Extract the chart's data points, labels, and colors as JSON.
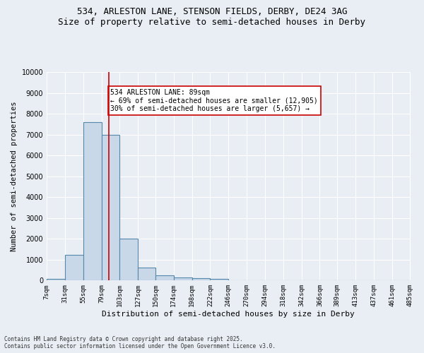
{
  "title_line1": "534, ARLESTON LANE, STENSON FIELDS, DERBY, DE24 3AG",
  "title_line2": "Size of property relative to semi-detached houses in Derby",
  "xlabel": "Distribution of semi-detached houses by size in Derby",
  "ylabel": "Number of semi-detached properties",
  "footnote1": "Contains HM Land Registry data © Crown copyright and database right 2025.",
  "footnote2": "Contains public sector information licensed under the Open Government Licence v3.0.",
  "bar_edges": [
    7,
    31,
    55,
    79,
    103,
    127,
    150,
    174,
    198,
    222,
    246,
    270,
    294,
    318,
    342,
    366,
    389,
    413,
    437,
    461,
    485
  ],
  "bar_values": [
    80,
    1220,
    7600,
    7000,
    2000,
    620,
    250,
    130,
    120,
    80,
    0,
    0,
    0,
    0,
    0,
    0,
    0,
    0,
    0,
    0
  ],
  "bar_color": "#c8d8e8",
  "bar_edgecolor": "#5588aa",
  "vline_x": 89,
  "vline_color": "#cc0000",
  "annotation_text": "534 ARLESTON LANE: 89sqm\n← 69% of semi-detached houses are smaller (12,905)\n30% of semi-detached houses are larger (5,657) →",
  "annotation_box_color": "#ffffff",
  "annotation_box_edgecolor": "#cc0000",
  "ylim": [
    0,
    10000
  ],
  "yticks": [
    0,
    1000,
    2000,
    3000,
    4000,
    5000,
    6000,
    7000,
    8000,
    9000,
    10000
  ],
  "bg_color": "#e8eef4",
  "plot_bg_color": "#e8eef4",
  "grid_color": "#ffffff",
  "tick_labels": [
    "7sqm",
    "31sqm",
    "55sqm",
    "79sqm",
    "103sqm",
    "127sqm",
    "150sqm",
    "174sqm",
    "198sqm",
    "222sqm",
    "246sqm",
    "270sqm",
    "294sqm",
    "318sqm",
    "342sqm",
    "366sqm",
    "389sqm",
    "413sqm",
    "437sqm",
    "461sqm",
    "485sqm"
  ]
}
